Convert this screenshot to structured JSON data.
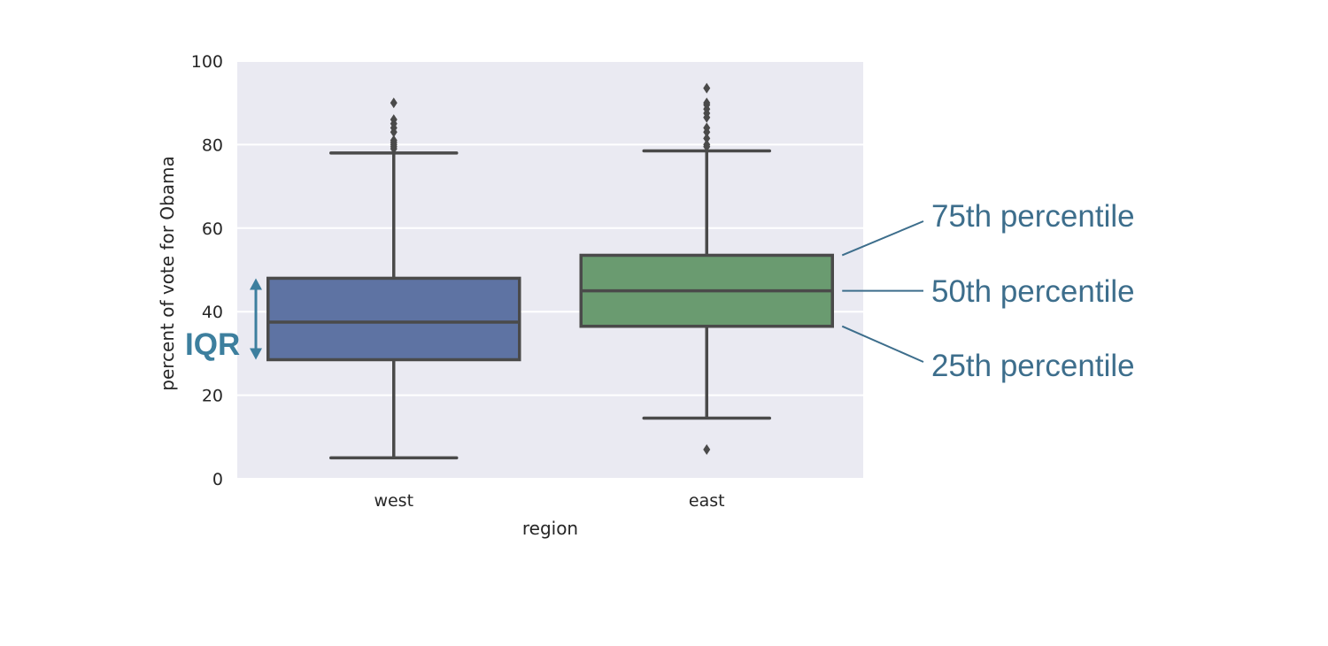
{
  "chart_data": {
    "type": "box",
    "title": "",
    "xlabel": "region",
    "ylabel": "percent of vote for Obama",
    "ylim": [
      0,
      100
    ],
    "yticks": [
      0,
      20,
      40,
      60,
      80,
      100
    ],
    "grid": true,
    "categories": [
      "west",
      "east"
    ],
    "boxes": [
      {
        "category": "west",
        "color": "#5e73a3",
        "whisker_low": 5,
        "q1": 28.5,
        "median": 37.5,
        "q3": 48,
        "whisker_high": 78,
        "outliers": [
          79,
          79.5,
          80,
          80.5,
          81,
          83,
          84,
          85,
          86,
          90
        ]
      },
      {
        "category": "east",
        "color": "#6a9b70",
        "whisker_low": 14.5,
        "q1": 36.5,
        "median": 45,
        "q3": 53.5,
        "whisker_high": 78.5,
        "outliers": [
          7,
          79.5,
          80,
          81.5,
          83,
          84,
          86.5,
          87.5,
          88.5,
          89.5,
          90,
          93.5
        ]
      }
    ],
    "annotations": {
      "iqr": "IQR",
      "q3_label": "75th percentile",
      "median_label": "50th percentile",
      "q1_label": "25th percentile"
    },
    "colors": {
      "plot_background": "#eaeaf2",
      "grid": "#ffffff",
      "box_edge": "#4a4a4a",
      "annotation": "#3d6e8c",
      "iqr_arrow": "#3d7f9e"
    }
  }
}
